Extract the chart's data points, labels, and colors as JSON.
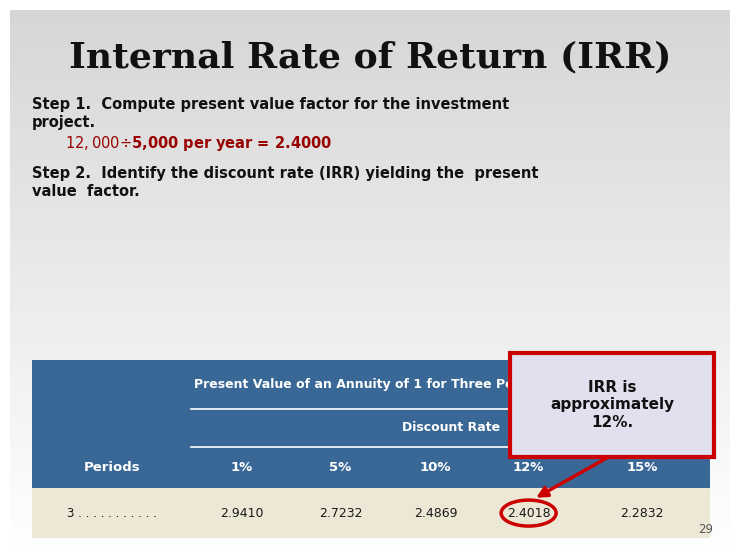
{
  "title": "Internal Rate of Return (IRR)",
  "title_fontsize": 26,
  "step1_line1": "Step 1.  Compute present value factor for the investment",
  "step1_line2": "project.",
  "step1_formula": "$12,000 ÷ $5,000 per year = 2.4000",
  "step2_line1": "Step 2.  Identify the discount rate (IRR) yielding the  present",
  "step2_line2": "value  factor.",
  "irr_box_text": "IRR is\napproximately\n12%.",
  "table_header1": "Present Value of an Annuity of 1 for Three Periods",
  "table_header2": "Discount Rate",
  "col_headers": [
    "Periods",
    "1%",
    "5%",
    "10%",
    "12%",
    "15%"
  ],
  "row_label": "3 . . . . . . . . . . .",
  "row_values": [
    "2.9410",
    "2.7232",
    "2.4869",
    "2.4018",
    "2.2832"
  ],
  "table_bg": "#3a6896",
  "table_row_bg": "#ede8d5",
  "table_text_color": "#ffffff",
  "table_row_text_color": "#1a1a1a",
  "step_text_color": "#111111",
  "formula_text_color": "#990000",
  "irr_box_bg": "#e0e0ee",
  "irr_box_border": "#cc0000",
  "arrow_color": "#cc0000",
  "circle_color": "#cc0000",
  "page_number": "29",
  "bg_color_top": "#d4d4d4",
  "bg_color_bottom": "#f8f8f8"
}
